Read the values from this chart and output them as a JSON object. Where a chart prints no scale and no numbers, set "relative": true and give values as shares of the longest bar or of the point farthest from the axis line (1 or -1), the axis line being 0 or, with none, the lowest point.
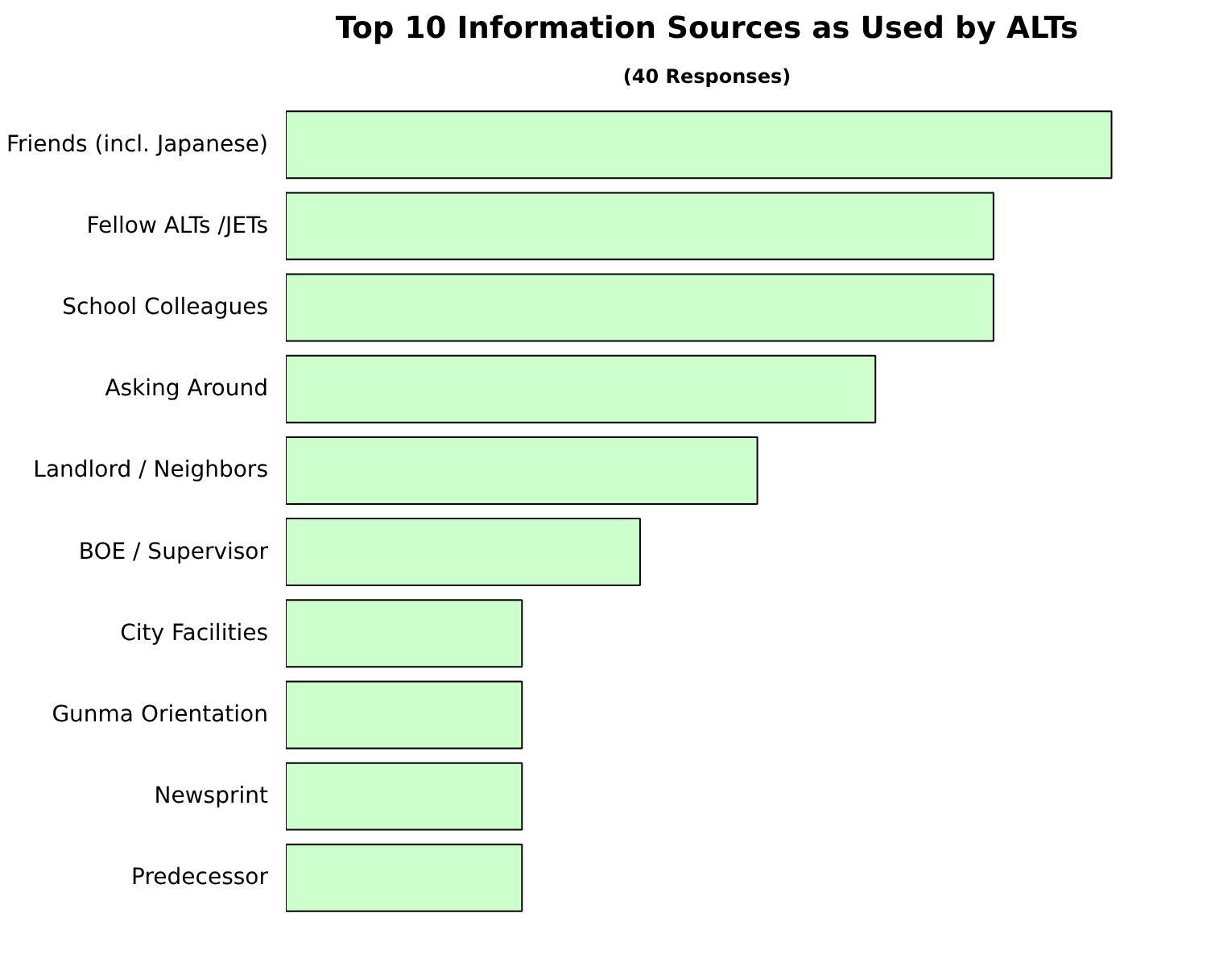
{
  "chart_data": {
    "type": "bar",
    "orientation": "horizontal",
    "relative": true,
    "title": "Top 10 Information Sources as Used by ALTs",
    "subtitle": "(40 Responses)",
    "categories": [
      "Friends (incl. Japanese)",
      "Fellow ALTs /JETs",
      "School Colleagues",
      "Asking Around",
      "Landlord / Neighbors",
      "BOE / Supervisor",
      "City Facilities",
      "Gunma Orientation",
      "Newsprint",
      "Predecessor"
    ],
    "values": [
      1,
      0.857,
      0.857,
      0.714,
      0.571,
      0.429,
      0.286,
      0.286,
      0.286,
      0.286
    ],
    "color": "#ccffcc"
  }
}
